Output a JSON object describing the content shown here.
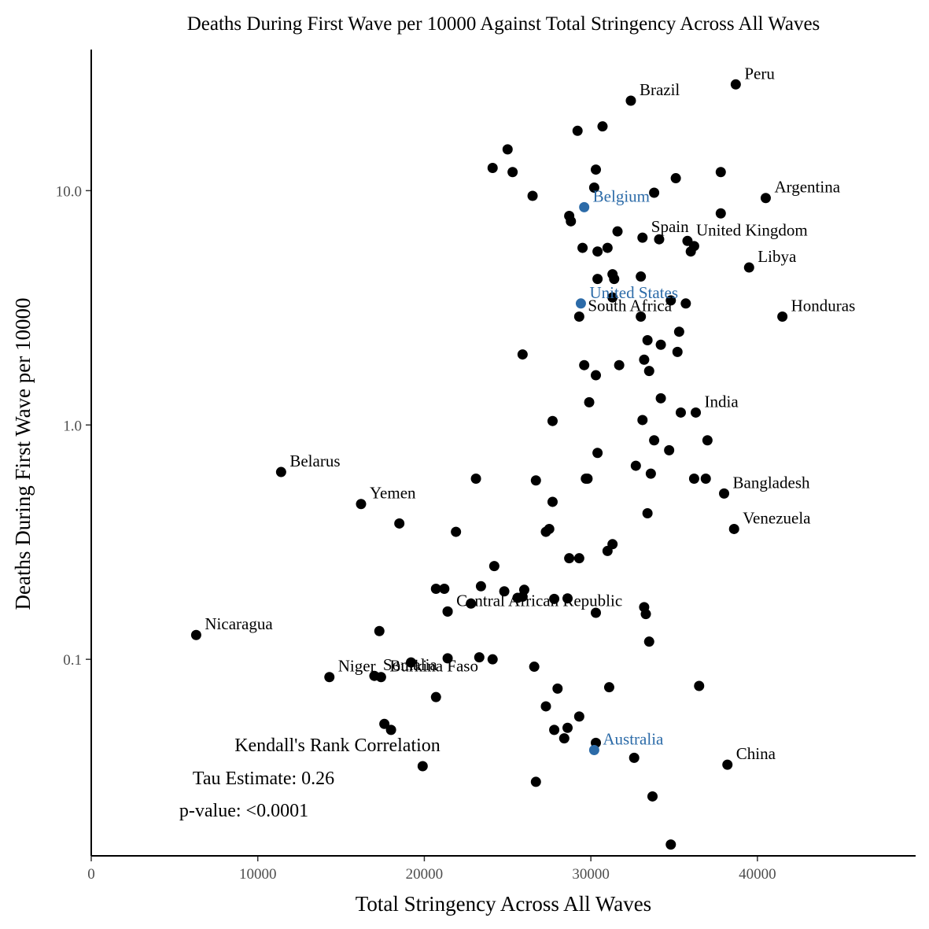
{
  "chart_data": {
    "type": "scatter",
    "title": "Deaths During First Wave per 10000 Against Total Stringency Across All Waves",
    "xlabel": "Total Stringency Across All Waves",
    "ylabel": "Deaths During First Wave per 10000",
    "xlim": [
      0,
      49500
    ],
    "ylim": [
      0.0145,
      40
    ],
    "yscale": "log",
    "xticks": [
      0,
      10000,
      20000,
      30000,
      40000
    ],
    "xtick_labels": [
      "0",
      "10000",
      "20000",
      "30000",
      "40000"
    ],
    "yticks": [
      0.1,
      1.0,
      10.0
    ],
    "ytick_labels": [
      "0.1",
      "1.0",
      "10.0"
    ],
    "grid": false,
    "colors": {
      "default": "#000000",
      "highlight": "#2c6ba8"
    },
    "labeled_points": [
      {
        "label": "Peru",
        "x": 38700,
        "y": 28.4,
        "highlight": false
      },
      {
        "label": "Brazil",
        "x": 32400,
        "y": 24.2,
        "highlight": false
      },
      {
        "label": "Argentina",
        "x": 40500,
        "y": 9.3,
        "highlight": false
      },
      {
        "label": "Belgium",
        "x": 29600,
        "y": 8.5,
        "highlight": true
      },
      {
        "label": "Spain",
        "x": 33100,
        "y": 6.3,
        "highlight": false
      },
      {
        "label": "United Kingdom",
        "x": 35800,
        "y": 6.1,
        "highlight": false
      },
      {
        "label": "Libya",
        "x": 39500,
        "y": 4.7,
        "highlight": false
      },
      {
        "label": "United States",
        "x": 29400,
        "y": 3.3,
        "highlight": true
      },
      {
        "label": "South Africa",
        "x": 29300,
        "y": 2.9,
        "highlight": false
      },
      {
        "label": "Honduras",
        "x": 41500,
        "y": 2.9,
        "highlight": false
      },
      {
        "label": "India",
        "x": 36300,
        "y": 1.13,
        "highlight": false
      },
      {
        "label": "Belarus",
        "x": 11400,
        "y": 0.63,
        "highlight": false
      },
      {
        "label": "Bangladesh",
        "x": 38000,
        "y": 0.51,
        "highlight": false
      },
      {
        "label": "Yemen",
        "x": 16200,
        "y": 0.46,
        "highlight": false
      },
      {
        "label": "Venezuela",
        "x": 38600,
        "y": 0.36,
        "highlight": false
      },
      {
        "label": "Central African Republic",
        "x": 21400,
        "y": 0.16,
        "highlight": false
      },
      {
        "label": "Nicaragua",
        "x": 6300,
        "y": 0.127,
        "highlight": false
      },
      {
        "label": "Niger",
        "x": 14300,
        "y": 0.084,
        "highlight": false
      },
      {
        "label": "Somalia",
        "x": 17000,
        "y": 0.085,
        "highlight": false
      },
      {
        "label": "Burkina Faso",
        "x": 17400,
        "y": 0.084,
        "highlight": false
      },
      {
        "label": "Australia",
        "x": 30200,
        "y": 0.041,
        "highlight": true
      },
      {
        "label": "China",
        "x": 38200,
        "y": 0.0355,
        "highlight": false
      }
    ],
    "points": [
      {
        "x": 29200,
        "y": 18.0
      },
      {
        "x": 30700,
        "y": 18.8
      },
      {
        "x": 25000,
        "y": 15.0
      },
      {
        "x": 24100,
        "y": 12.5
      },
      {
        "x": 25300,
        "y": 12.0
      },
      {
        "x": 30300,
        "y": 12.3
      },
      {
        "x": 35100,
        "y": 11.3
      },
      {
        "x": 37800,
        "y": 12.0
      },
      {
        "x": 26500,
        "y": 9.5
      },
      {
        "x": 30200,
        "y": 10.3
      },
      {
        "x": 33800,
        "y": 9.8
      },
      {
        "x": 28700,
        "y": 7.8
      },
      {
        "x": 28800,
        "y": 7.4
      },
      {
        "x": 37800,
        "y": 8.0
      },
      {
        "x": 31600,
        "y": 6.7
      },
      {
        "x": 34100,
        "y": 6.2
      },
      {
        "x": 29500,
        "y": 5.7
      },
      {
        "x": 30400,
        "y": 5.5
      },
      {
        "x": 31000,
        "y": 5.7
      },
      {
        "x": 36000,
        "y": 5.5
      },
      {
        "x": 36200,
        "y": 5.8
      },
      {
        "x": 30400,
        "y": 4.2
      },
      {
        "x": 31300,
        "y": 4.4
      },
      {
        "x": 31400,
        "y": 4.2
      },
      {
        "x": 33000,
        "y": 4.3
      },
      {
        "x": 31300,
        "y": 3.5
      },
      {
        "x": 34800,
        "y": 3.4
      },
      {
        "x": 35700,
        "y": 3.3
      },
      {
        "x": 33000,
        "y": 2.9
      },
      {
        "x": 35300,
        "y": 2.5
      },
      {
        "x": 33400,
        "y": 2.3
      },
      {
        "x": 34200,
        "y": 2.2
      },
      {
        "x": 25900,
        "y": 2.0
      },
      {
        "x": 33200,
        "y": 1.9
      },
      {
        "x": 35200,
        "y": 2.05
      },
      {
        "x": 29600,
        "y": 1.8
      },
      {
        "x": 31700,
        "y": 1.8
      },
      {
        "x": 30300,
        "y": 1.63
      },
      {
        "x": 33500,
        "y": 1.7
      },
      {
        "x": 34200,
        "y": 1.3
      },
      {
        "x": 29900,
        "y": 1.25
      },
      {
        "x": 35400,
        "y": 1.13
      },
      {
        "x": 27700,
        "y": 1.04
      },
      {
        "x": 33100,
        "y": 1.05
      },
      {
        "x": 33800,
        "y": 0.86
      },
      {
        "x": 37000,
        "y": 0.86
      },
      {
        "x": 30400,
        "y": 0.76
      },
      {
        "x": 34700,
        "y": 0.78
      },
      {
        "x": 32700,
        "y": 0.67
      },
      {
        "x": 33600,
        "y": 0.62
      },
      {
        "x": 23100,
        "y": 0.59
      },
      {
        "x": 26700,
        "y": 0.58
      },
      {
        "x": 29700,
        "y": 0.59
      },
      {
        "x": 29800,
        "y": 0.59
      },
      {
        "x": 36200,
        "y": 0.59
      },
      {
        "x": 36900,
        "y": 0.59
      },
      {
        "x": 27700,
        "y": 0.47
      },
      {
        "x": 33400,
        "y": 0.42
      },
      {
        "x": 18500,
        "y": 0.38
      },
      {
        "x": 21900,
        "y": 0.35
      },
      {
        "x": 27300,
        "y": 0.35
      },
      {
        "x": 27500,
        "y": 0.36
      },
      {
        "x": 31300,
        "y": 0.31
      },
      {
        "x": 31000,
        "y": 0.29
      },
      {
        "x": 28700,
        "y": 0.27
      },
      {
        "x": 29300,
        "y": 0.27
      },
      {
        "x": 24200,
        "y": 0.25
      },
      {
        "x": 20700,
        "y": 0.2
      },
      {
        "x": 21200,
        "y": 0.2
      },
      {
        "x": 23400,
        "y": 0.205
      },
      {
        "x": 24800,
        "y": 0.195
      },
      {
        "x": 26000,
        "y": 0.198
      },
      {
        "x": 25600,
        "y": 0.183
      },
      {
        "x": 25900,
        "y": 0.185
      },
      {
        "x": 22800,
        "y": 0.173
      },
      {
        "x": 27800,
        "y": 0.181
      },
      {
        "x": 28600,
        "y": 0.182
      },
      {
        "x": 21400,
        "y": 0.16
      },
      {
        "x": 30300,
        "y": 0.158
      },
      {
        "x": 33200,
        "y": 0.167
      },
      {
        "x": 33300,
        "y": 0.156
      },
      {
        "x": 17300,
        "y": 0.132
      },
      {
        "x": 33500,
        "y": 0.119
      },
      {
        "x": 21400,
        "y": 0.101
      },
      {
        "x": 23300,
        "y": 0.102
      },
      {
        "x": 24100,
        "y": 0.1
      },
      {
        "x": 19200,
        "y": 0.097
      },
      {
        "x": 26600,
        "y": 0.093
      },
      {
        "x": 36500,
        "y": 0.077
      },
      {
        "x": 28000,
        "y": 0.075
      },
      {
        "x": 31100,
        "y": 0.076
      },
      {
        "x": 20700,
        "y": 0.069
      },
      {
        "x": 27300,
        "y": 0.063
      },
      {
        "x": 29300,
        "y": 0.057
      },
      {
        "x": 17600,
        "y": 0.053
      },
      {
        "x": 18000,
        "y": 0.05
      },
      {
        "x": 27800,
        "y": 0.05
      },
      {
        "x": 28600,
        "y": 0.051
      },
      {
        "x": 28400,
        "y": 0.046
      },
      {
        "x": 30300,
        "y": 0.044
      },
      {
        "x": 32600,
        "y": 0.038
      },
      {
        "x": 19900,
        "y": 0.035
      },
      {
        "x": 26700,
        "y": 0.03
      },
      {
        "x": 33700,
        "y": 0.026
      },
      {
        "x": 34800,
        "y": 0.0162
      }
    ],
    "annotations": [
      "Kendall's Rank Correlation",
      "Tau Estimate: 0.26",
      "p-value: <0.0001"
    ]
  }
}
